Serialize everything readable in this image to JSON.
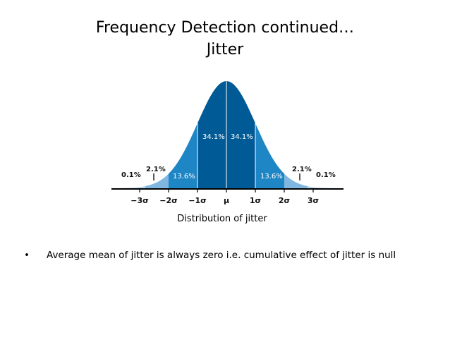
{
  "slide": {
    "title_line1": "Frequency Detection continued…",
    "title_line2": "Jitter",
    "caption": "Distribution of jitter",
    "bullets": [
      {
        "glyph": "•",
        "text": "Average mean of jitter is always zero i.e. cumulative effect of jitter is null"
      }
    ]
  },
  "figure": {
    "region_labels": {
      "outer_left": "0.1%",
      "tail_left": "2.1%",
      "mid_left": "13.6%",
      "center_left": "34.1%",
      "center_right": "34.1%",
      "mid_right": "13.6%",
      "tail_right": "2.1%",
      "outer_right": "0.1%"
    },
    "axis_ticks": [
      "−3σ",
      "−2σ",
      "−1σ",
      "μ",
      "1σ",
      "2σ",
      "3σ"
    ],
    "colors": {
      "center": "#005a96",
      "one_to_two": "#1f86c6",
      "two_to_three": "#7fb7e0",
      "tail": "#b9d7ee",
      "axis": "#000000"
    }
  }
}
